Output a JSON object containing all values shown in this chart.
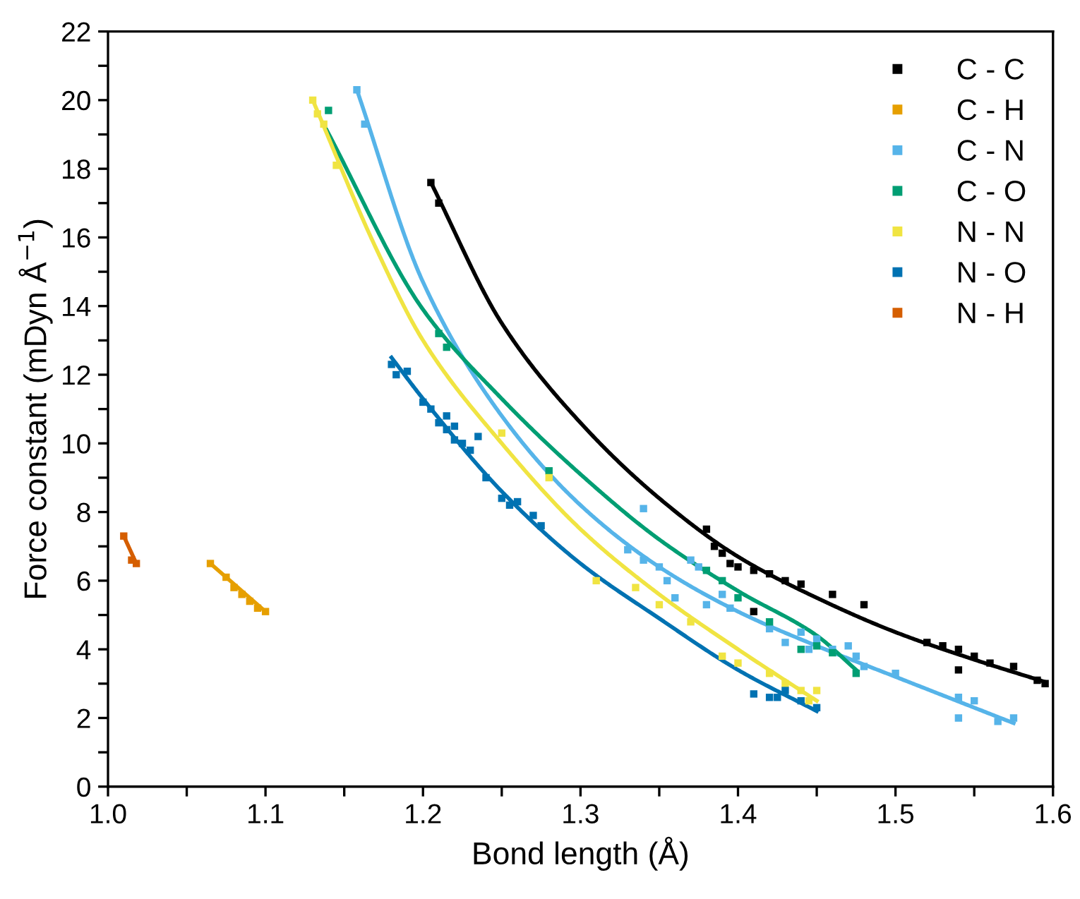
{
  "chart_data": {
    "type": "scatter",
    "xlabel": "Bond length (Å)",
    "ylabel": "Force constant (mDyn Å$^{−1}$)",
    "xlim": [
      1.0,
      1.6
    ],
    "ylim": [
      0,
      22
    ],
    "xticks": [
      {
        "value": 1.0,
        "label": "1.0"
      },
      {
        "value": 1.05,
        "label": null
      },
      {
        "value": 1.1,
        "label": "1.1"
      },
      {
        "value": 1.15,
        "label": null
      },
      {
        "value": 1.2,
        "label": "1.2"
      },
      {
        "value": 1.25,
        "label": null
      },
      {
        "value": 1.3,
        "label": "1.3"
      },
      {
        "value": 1.35,
        "label": null
      },
      {
        "value": 1.4,
        "label": "1.4"
      },
      {
        "value": 1.45,
        "label": null
      },
      {
        "value": 1.5,
        "label": "1.5"
      },
      {
        "value": 1.55,
        "label": null
      },
      {
        "value": 1.6,
        "label": "1.6"
      }
    ],
    "yticks": [
      0,
      {
        "value": 1,
        "label": null
      },
      2,
      {
        "value": 3,
        "label": null
      },
      4,
      {
        "value": 5,
        "label": null
      },
      6,
      {
        "value": 7,
        "label": null
      },
      8,
      {
        "value": 9,
        "label": null
      },
      10,
      {
        "value": 11,
        "label": null
      },
      12,
      {
        "value": 13,
        "label": null
      },
      14,
      {
        "value": 15,
        "label": null
      },
      16,
      {
        "value": 17,
        "label": null
      },
      18,
      {
        "value": 19,
        "label": null
      },
      20,
      {
        "value": 21,
        "label": null
      },
      22
    ],
    "legend": "top right",
    "grid": false,
    "line_style": "solid",
    "series": [
      {
        "name": "C - C",
        "marker": "square",
        "color": "#000000",
        "x": [
          1.205,
          1.21,
          1.38,
          1.385,
          1.39,
          1.395,
          1.4,
          1.41,
          1.42,
          1.43,
          1.44,
          1.41,
          1.46,
          1.48,
          1.52,
          1.53,
          1.54,
          1.55,
          1.56,
          1.575,
          1.59,
          1.595,
          1.54
        ],
        "values": [
          17.6,
          17.0,
          7.5,
          7.0,
          6.8,
          6.5,
          6.4,
          6.3,
          6.2,
          6.0,
          5.9,
          5.1,
          5.6,
          5.3,
          4.2,
          4.1,
          4.0,
          3.8,
          3.6,
          3.5,
          3.1,
          3.0,
          3.4
        ]
      },
      {
        "name": "C - H",
        "marker": "square",
        "color": "#e69f00",
        "x": [
          1.065,
          1.075,
          1.08,
          1.085,
          1.09,
          1.095,
          1.1
        ],
        "values": [
          6.5,
          6.1,
          5.8,
          5.6,
          5.4,
          5.2,
          5.1
        ]
      },
      {
        "name": "C - N",
        "marker": "square",
        "color": "#56b4e9",
        "x": [
          1.158,
          1.163,
          1.34,
          1.33,
          1.34,
          1.35,
          1.355,
          1.37,
          1.375,
          1.36,
          1.38,
          1.39,
          1.395,
          1.42,
          1.43,
          1.44,
          1.445,
          1.45,
          1.46,
          1.47,
          1.475,
          1.48,
          1.5,
          1.54,
          1.55,
          1.54,
          1.565,
          1.575
        ],
        "values": [
          20.3,
          19.3,
          8.1,
          6.9,
          6.6,
          6.4,
          6.0,
          6.6,
          6.4,
          5.5,
          5.3,
          5.6,
          5.2,
          4.6,
          4.2,
          4.5,
          4.0,
          4.3,
          4.0,
          4.1,
          3.8,
          3.5,
          3.3,
          2.6,
          2.5,
          2.0,
          1.9,
          2.0
        ]
      },
      {
        "name": "C - O",
        "marker": "square",
        "color": "#009e73",
        "x": [
          1.14,
          1.21,
          1.215,
          1.28,
          1.38,
          1.39,
          1.4,
          1.42,
          1.44,
          1.45,
          1.46,
          1.475
        ],
        "values": [
          19.7,
          13.2,
          12.8,
          9.2,
          6.3,
          6.0,
          5.5,
          4.8,
          4.0,
          4.1,
          3.9,
          3.3
        ]
      },
      {
        "name": "N - N",
        "marker": "square",
        "color": "#f0e442",
        "x": [
          1.13,
          1.133,
          1.137,
          1.145,
          1.25,
          1.28,
          1.31,
          1.335,
          1.35,
          1.37,
          1.39,
          1.4,
          1.42,
          1.43,
          1.44,
          1.45,
          1.445
        ],
        "values": [
          20.0,
          19.6,
          19.3,
          18.1,
          10.3,
          9.0,
          6.0,
          5.8,
          5.3,
          4.8,
          3.8,
          3.6,
          3.3,
          3.0,
          2.8,
          2.8,
          2.5
        ]
      },
      {
        "name": "N - O",
        "marker": "square",
        "color": "#0072b2",
        "x": [
          1.18,
          1.183,
          1.19,
          1.2,
          1.205,
          1.21,
          1.215,
          1.215,
          1.22,
          1.22,
          1.225,
          1.23,
          1.235,
          1.24,
          1.25,
          1.255,
          1.26,
          1.27,
          1.275,
          1.41,
          1.42,
          1.425,
          1.43,
          1.44,
          1.45
        ],
        "values": [
          12.3,
          12.0,
          12.1,
          11.2,
          11.0,
          10.6,
          10.4,
          10.8,
          10.5,
          10.1,
          10.0,
          9.8,
          10.2,
          9.0,
          8.4,
          8.2,
          8.3,
          7.9,
          7.6,
          2.7,
          2.6,
          2.6,
          2.8,
          2.5,
          2.3
        ]
      },
      {
        "name": "N - H",
        "marker": "square",
        "color": "#d55e00",
        "x": [
          1.01,
          1.015,
          1.018
        ],
        "values": [
          7.3,
          6.6,
          6.5
        ]
      },
      {
        "type": "line",
        "marker": "none",
        "color": "#000000",
        "x": [
          1.205,
          1.25,
          1.3,
          1.35,
          1.4,
          1.45,
          1.5,
          1.55,
          1.595
        ],
        "values": [
          17.6,
          13.5,
          10.6,
          8.4,
          6.7,
          5.5,
          4.5,
          3.7,
          3.05
        ]
      },
      {
        "type": "line",
        "marker": "none",
        "color": "#e69f00",
        "x": [
          1.065,
          1.1
        ],
        "values": [
          6.5,
          5.1
        ]
      },
      {
        "type": "line",
        "marker": "none",
        "color": "#56b4e9",
        "x": [
          1.158,
          1.2,
          1.25,
          1.3,
          1.35,
          1.4,
          1.45,
          1.5,
          1.575
        ],
        "values": [
          20.3,
          14.7,
          10.8,
          8.2,
          6.4,
          5.1,
          4.1,
          3.2,
          1.85
        ]
      },
      {
        "type": "line",
        "marker": "none",
        "color": "#009e73",
        "x": [
          1.138,
          1.2,
          1.25,
          1.3,
          1.35,
          1.4,
          1.45,
          1.475
        ],
        "values": [
          19.2,
          13.9,
          11.3,
          9.1,
          7.2,
          5.7,
          4.4,
          3.4
        ]
      },
      {
        "type": "line",
        "marker": "none",
        "color": "#f0e442",
        "x": [
          1.13,
          1.17,
          1.2,
          1.25,
          1.3,
          1.35,
          1.4,
          1.45
        ],
        "values": [
          20.0,
          15.7,
          13.0,
          10.0,
          7.5,
          5.6,
          4.0,
          2.5
        ]
      },
      {
        "type": "line",
        "marker": "none",
        "color": "#0072b2",
        "x": [
          1.18,
          1.2,
          1.25,
          1.3,
          1.35,
          1.4,
          1.45
        ],
        "values": [
          12.5,
          11.3,
          8.6,
          6.5,
          4.9,
          3.4,
          2.2
        ]
      },
      {
        "type": "line",
        "marker": "none",
        "color": "#d55e00",
        "x": [
          1.01,
          1.018
        ],
        "values": [
          7.3,
          6.5
        ]
      }
    ]
  }
}
